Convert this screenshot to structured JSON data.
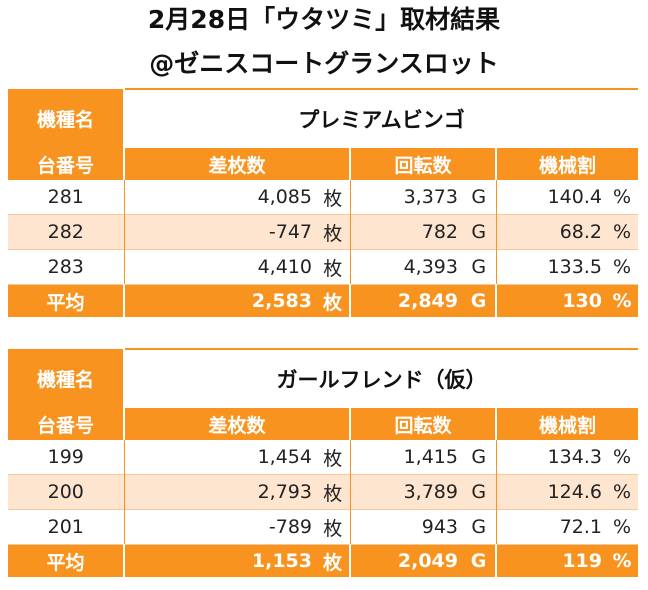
{
  "header": {
    "title_line1": "2月28日「ウタツミ」取材結果",
    "title_line2": "@ゼニスコートグランスロット"
  },
  "labels": {
    "model": "機種名",
    "machine_no": "台番号",
    "diff": "差枚数",
    "spins": "回転数",
    "payout": "機械割",
    "average": "平均",
    "unit_coins": "枚",
    "unit_games": "G",
    "unit_percent": "%"
  },
  "tables": [
    {
      "model_name": "プレミアムビンゴ",
      "rows": [
        {
          "no": "281",
          "diff": "4,085",
          "spins": "3,373",
          "payout": "140.4"
        },
        {
          "no": "282",
          "diff": "-747",
          "spins": "782",
          "payout": "68.2"
        },
        {
          "no": "283",
          "diff": "4,410",
          "spins": "4,393",
          "payout": "133.5"
        }
      ],
      "average": {
        "diff": "2,583",
        "spins": "2,849",
        "payout": "130"
      }
    },
    {
      "model_name": "ガールフレンド（仮）",
      "rows": [
        {
          "no": "199",
          "diff": "1,454",
          "spins": "1,415",
          "payout": "134.3"
        },
        {
          "no": "200",
          "diff": "2,793",
          "spins": "3,789",
          "payout": "124.6"
        },
        {
          "no": "201",
          "diff": "-789",
          "spins": "943",
          "payout": "72.1"
        }
      ],
      "average": {
        "diff": "1,153",
        "spins": "2,049",
        "payout": "119"
      }
    }
  ]
}
